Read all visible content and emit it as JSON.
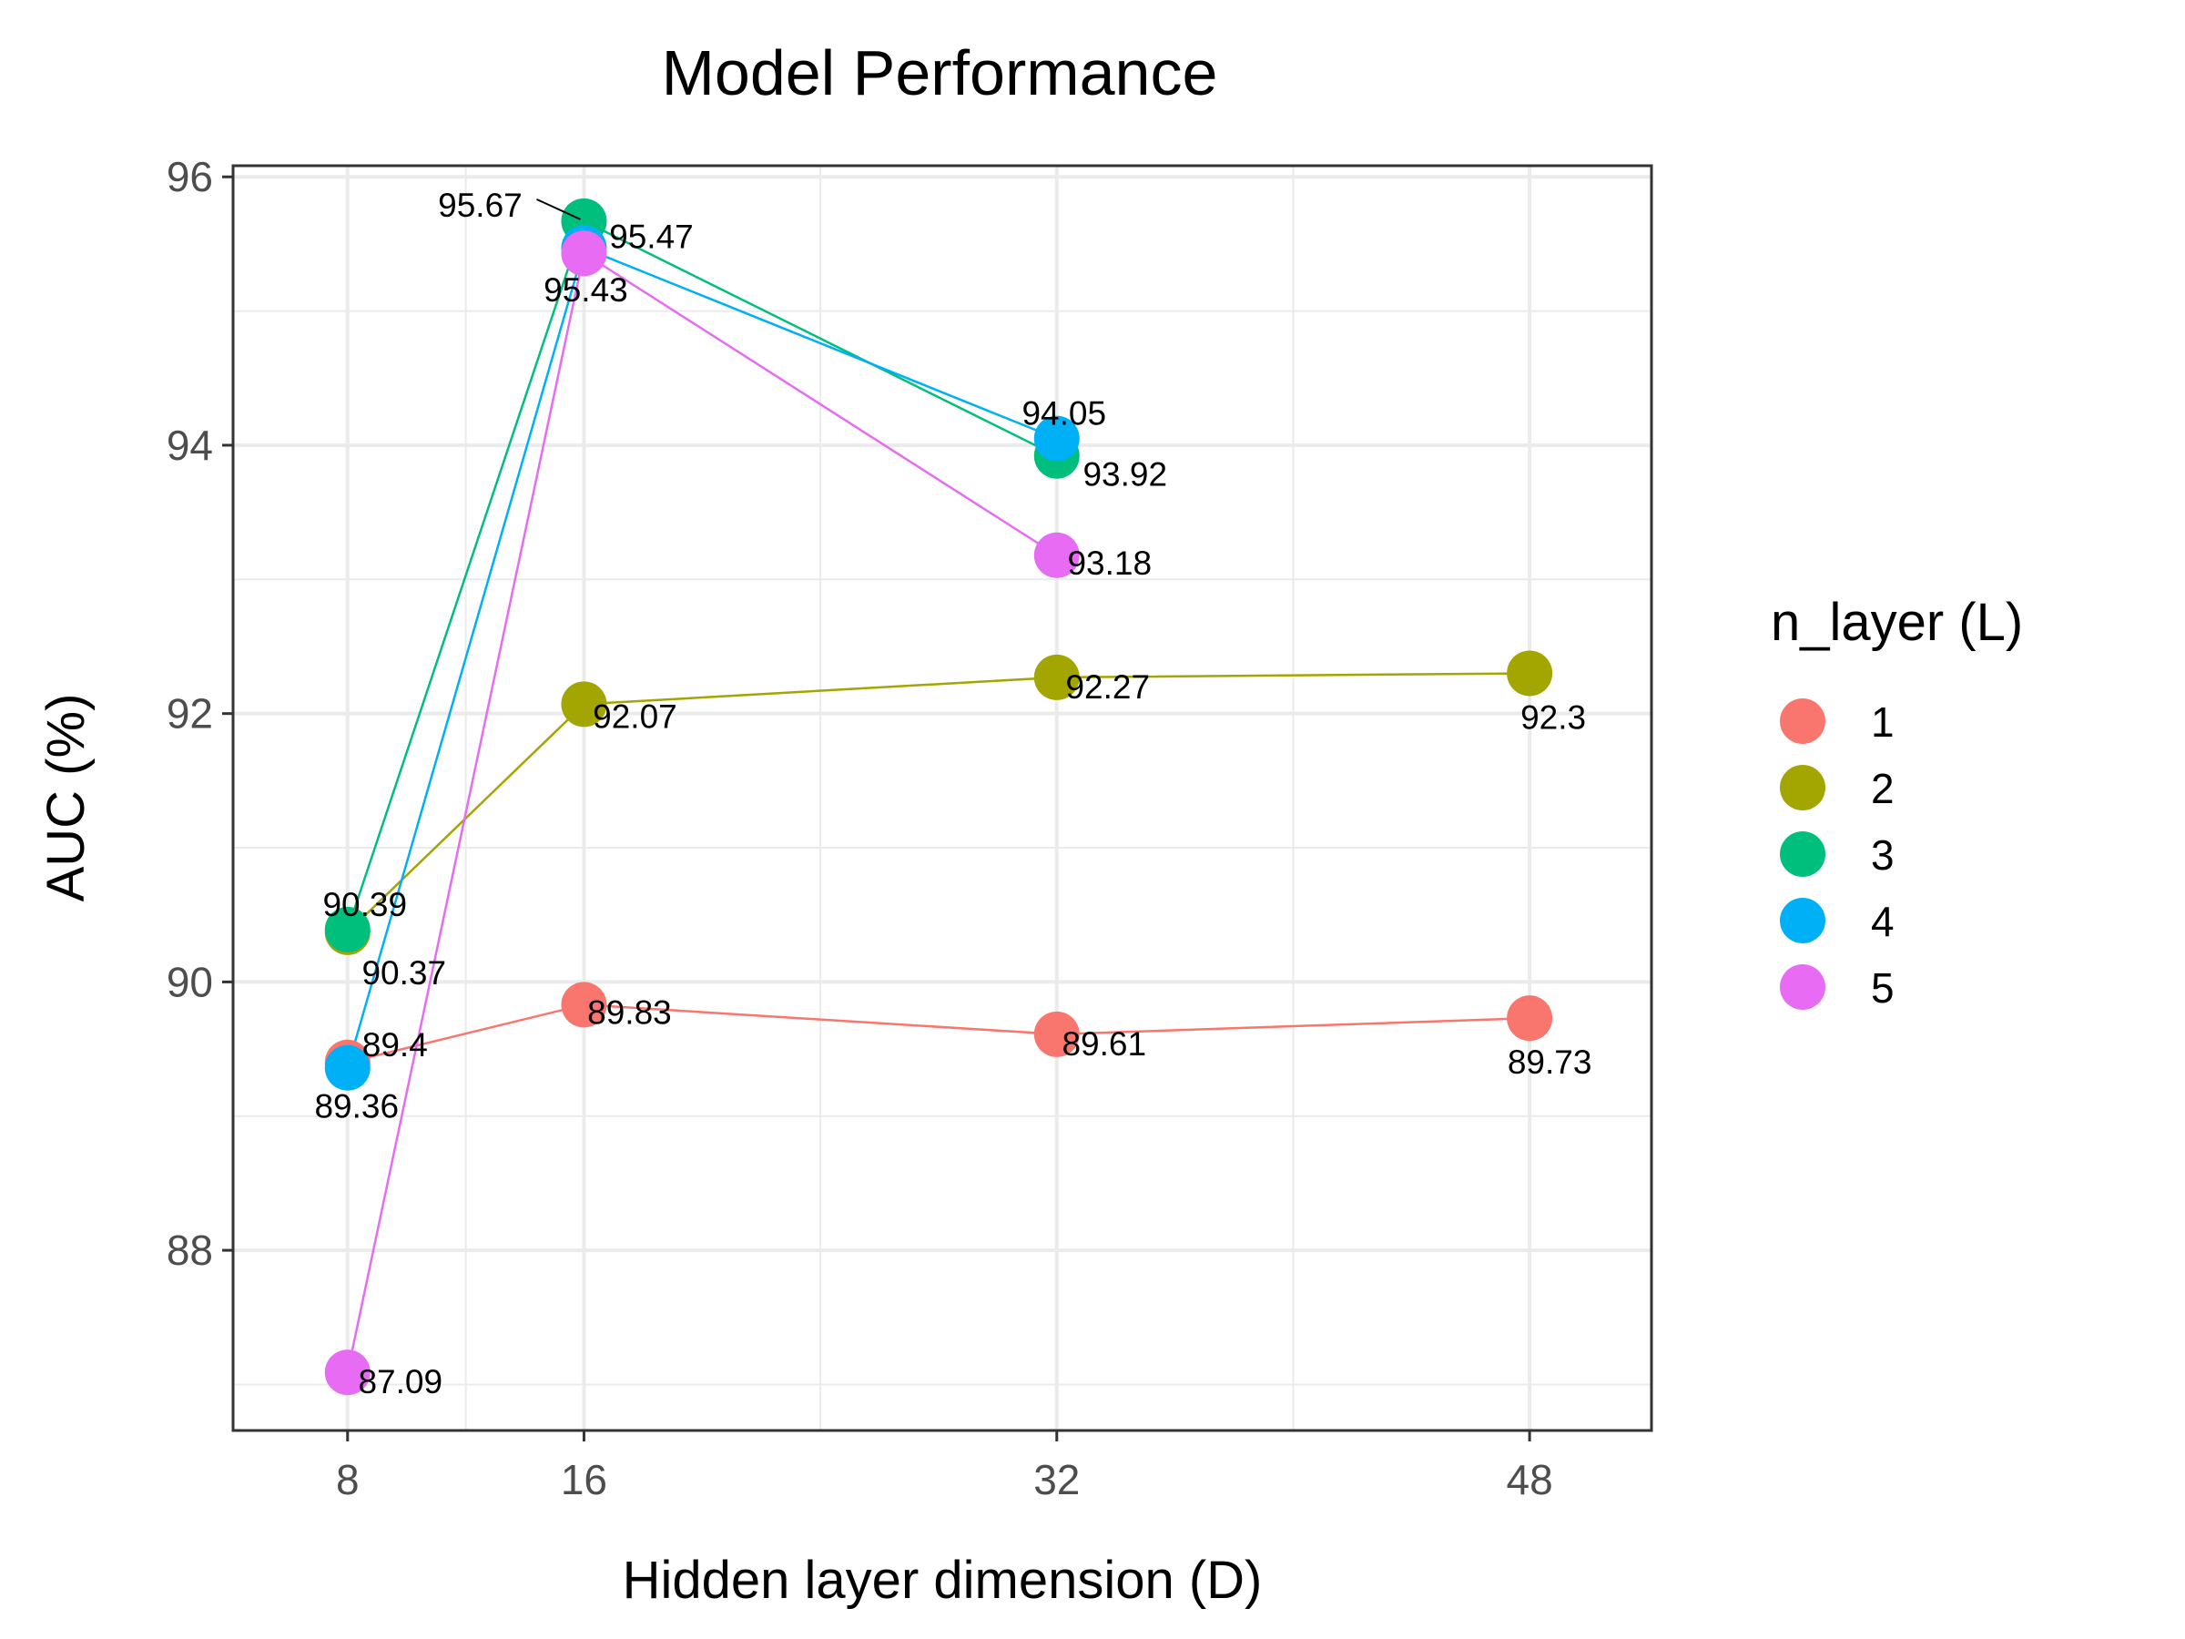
{
  "chart_data": {
    "type": "line",
    "title": "Model Performance",
    "xlabel": "Hidden layer dimension (D)",
    "ylabel": "AUC (%)",
    "x_ticks": [
      8,
      16,
      32,
      48
    ],
    "y_ticks": [
      88,
      90,
      92,
      94,
      96
    ],
    "xlim": [
      4.125,
      52.125
    ],
    "ylim": [
      86.657,
      96.083
    ],
    "grid": true,
    "legend": {
      "title": "n_layer (L)",
      "position": "right"
    },
    "series": [
      {
        "name": "1",
        "color": "#F8766D",
        "x": [
          8,
          16,
          32,
          48
        ],
        "y": [
          89.4,
          89.83,
          89.61,
          89.73
        ],
        "labels": [
          "89.4",
          "89.83",
          "89.61",
          "89.73"
        ]
      },
      {
        "name": "2",
        "color": "#A3A500",
        "x": [
          8,
          16,
          32,
          48
        ],
        "y": [
          90.37,
          92.07,
          92.27,
          92.3
        ],
        "labels": [
          "90.37",
          "92.07",
          "92.27",
          "92.3"
        ]
      },
      {
        "name": "3",
        "color": "#00BF7D",
        "x": [
          8,
          16,
          32
        ],
        "y": [
          90.39,
          95.67,
          93.92
        ],
        "labels": [
          "90.39",
          "95.67",
          "93.92"
        ]
      },
      {
        "name": "4",
        "color": "#00B0F6",
        "x": [
          8,
          16,
          32
        ],
        "y": [
          89.36,
          95.47,
          94.05
        ],
        "labels": [
          "89.36",
          "95.47",
          "94.05"
        ]
      },
      {
        "name": "5",
        "color": "#E76BF3",
        "x": [
          8,
          16,
          32
        ],
        "y": [
          87.09,
          95.43,
          93.18
        ],
        "labels": [
          "87.09",
          "95.43",
          "93.18"
        ]
      }
    ]
  }
}
